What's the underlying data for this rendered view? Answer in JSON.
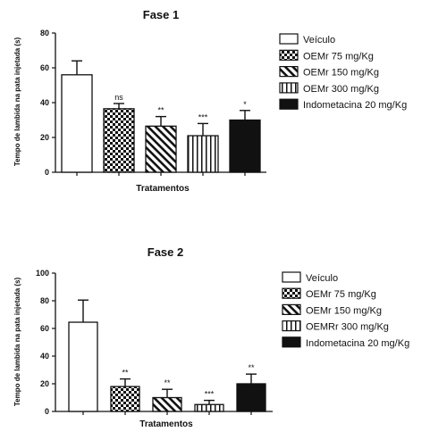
{
  "chart_data": [
    {
      "type": "bar",
      "title": "Fase 1",
      "ylabel": "Tempo de lambida na pata injetada (s)",
      "xlabel": "Tratamentos",
      "ylim": [
        0,
        80
      ],
      "yticks": [
        0,
        20,
        40,
        60,
        80
      ],
      "grid": false,
      "legend_position": "right",
      "categories": [
        "Veículo",
        "OEMr 75 mg/Kg",
        "OEMr 150 mg/Kg",
        "OEMr 300 mg/Kg",
        "Indometacina 20 mg/Kg"
      ],
      "values": [
        56,
        36.5,
        26.5,
        21,
        30
      ],
      "errors": [
        8,
        3,
        5.5,
        7,
        5.5
      ],
      "annotations": [
        "",
        "ns",
        "**",
        "***",
        "*"
      ],
      "patterns": [
        "white",
        "checker",
        "diagonal",
        "vertical",
        "black"
      ]
    },
    {
      "type": "bar",
      "title": "Fase 2",
      "ylabel": "Tempo de lambida na pata injetada (s)",
      "xlabel": "Tratamentos",
      "ylim": [
        0,
        100
      ],
      "yticks": [
        0,
        20,
        40,
        60,
        80,
        100
      ],
      "grid": false,
      "legend_position": "right",
      "categories": [
        "Veículo",
        "OEMr 75 mg/Kg",
        "OEMr 150 mg/Kg",
        "OEMRr 300 mg/Kg",
        "Indometacina 20 mg/Kg"
      ],
      "values": [
        64.5,
        18,
        10,
        5,
        20
      ],
      "errors": [
        16,
        5.5,
        6,
        3,
        7
      ],
      "annotations": [
        "",
        "**",
        "**",
        "***",
        "**"
      ],
      "patterns": [
        "white",
        "checker",
        "diagonal",
        "vertical",
        "black"
      ]
    }
  ]
}
